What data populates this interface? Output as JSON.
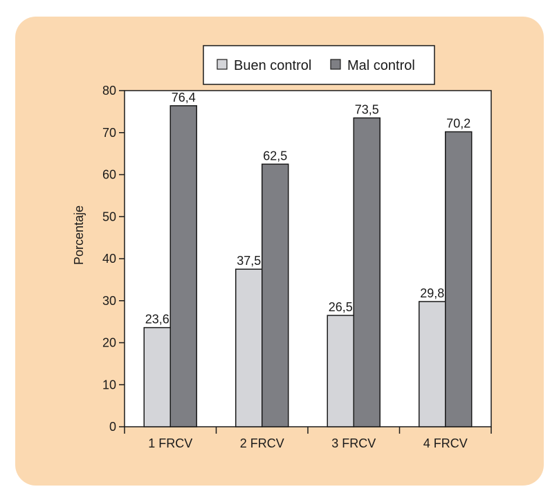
{
  "chart_data": {
    "type": "bar",
    "categories": [
      "1 FRCV",
      "2 FRCV",
      "3 FRCV",
      "4 FRCV"
    ],
    "series": [
      {
        "name": "Buen control",
        "values": [
          23.6,
          37.5,
          26.5,
          29.8
        ],
        "labels": [
          "23,6",
          "37,5",
          "26,5",
          "29,8"
        ],
        "color": "#d4d5d9"
      },
      {
        "name": "Mal control",
        "values": [
          76.4,
          62.5,
          73.5,
          70.2
        ],
        "labels": [
          "76,4",
          "62,5",
          "73,5",
          "70,2"
        ],
        "color": "#7e7f84"
      }
    ],
    "ylabel": "Porcentaje",
    "ylim": [
      0,
      80
    ],
    "yticks": [
      0,
      10,
      20,
      30,
      40,
      50,
      60,
      70,
      80
    ],
    "grid": false,
    "legend_position": "top"
  }
}
